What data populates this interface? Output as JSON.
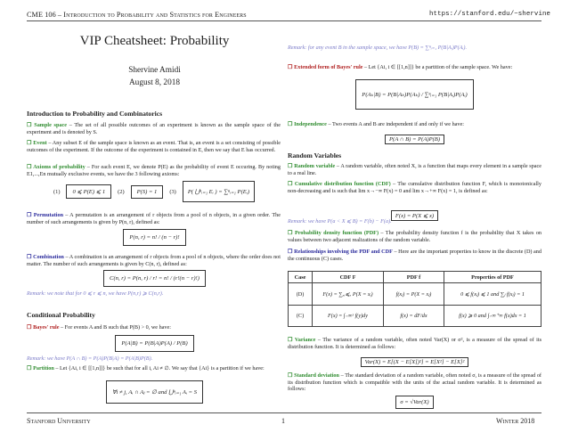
{
  "header": {
    "course": "CME 106 – Introduction to Probability and Statistics for Engineers",
    "url": "https://stanford.edu/~shervine"
  },
  "title": "VIP Cheatsheet: Probability",
  "author": "Shervine Amidi",
  "date": "August 8, 2018",
  "colors": {
    "green": "#2e8b2e",
    "blue": "#2b2b9c",
    "red": "#b02020",
    "remark": "#7a7ac8"
  },
  "left": {
    "sec1": "Introduction to Probability and Combinatorics",
    "sample": {
      "term": "❒ Sample space",
      "text": " – The set of all possible outcomes of an experiment is known as the sample space of the experiment and is denoted by S."
    },
    "event": {
      "term": "❒ Event",
      "text": " – Any subset E of the sample space is known as an event. That is, an event is a set consisting of possible outcomes of the experiment. If the outcome of the experiment is contained in E, then we say that E has occurred."
    },
    "axioms": {
      "term": "❒ Axioms of probability",
      "text": " – For each event E, we denote P(E) as the probability of event E occuring. By noting E1,...,En mutually exclusive events, we have the 3 following axioms:",
      "n1": "(1)",
      "f1": "0 ⩽ P(E) ⩽ 1",
      "n2": "(2)",
      "f2": "P(S) = 1",
      "n3": "(3)",
      "f3": "P( ⋃ⁿᵢ₌₁ Eᵢ ) = ∑ⁿᵢ₌₁ P(Eᵢ)"
    },
    "perm": {
      "term": "❒ Permutation",
      "text": " – A permutation is an arrangement of r objects from a pool of n objects, in a given order. The number of such arrangements is given by P(n, r), defined as:",
      "formula": "P(n, r) = n! / (n − r)!"
    },
    "comb": {
      "term": "❒ Combination",
      "text": " – A combination is an arrangement of r objects from a pool of n objects, where the order does not matter. The number of such arrangements is given by C(n, r), defined as:",
      "formula": "C(n, r) = P(n, r) / r! = n! / (r!(n − r)!)"
    },
    "remark1": "Remark: we note that for 0 ⩽ r ⩽ n, we have P(n,r) ⩾ C(n,r).",
    "sec2": "Conditional Probability",
    "bayes": {
      "term": "❒ Bayes' rule",
      "text": " – For events A and B such that P(B) > 0, we have:",
      "formula": "P(A|B) = P(B|A)P(A) / P(B)"
    },
    "remark2": "Remark: we have P(A ∩ B) = P(A)P(B|A) = P(A|B)P(B).",
    "partition": {
      "term": "❒ Partition",
      "text": " – Let {Ai, i ∈ [[1,n]]} be such that for all i, Ai ≠ ∅. We say that {Ai} is a partition if we have:",
      "formula": "∀i ≠ j, Aᵢ ∩ Aⱼ = ∅   and   ⋃ⁿᵢ₌₁ Aᵢ = S"
    }
  },
  "right": {
    "remark3": "Remark: for any event B in the sample space, we have P(B) = ∑ⁿᵢ₌₁ P(B|Aᵢ)P(Aᵢ).",
    "ext": {
      "term": "❒ Extended form of Bayes' rule",
      "text": " – Let {Ai, i ∈ [[1,n]]} be a partition of the sample space. We have:",
      "formula": "P(Aₖ|B) = P(B|Aₖ)P(Aₖ) / ∑ⁿᵢ₌₁ P(B|Aᵢ)P(Aᵢ)"
    },
    "indep": {
      "term": "❒ Independence",
      "text": " – Two events A and B are independent if and only if we have:",
      "formula": "P(A ∩ B) = P(A)P(B)"
    },
    "sec3": "Random Variables",
    "rv": {
      "term": "❒ Random variable",
      "text": " – A random variable, often noted X, is a function that maps every element in a sample space to a real line."
    },
    "cdf": {
      "term": "❒ Cumulative distribution function (CDF)",
      "text": " – The cumulative distribution function F, which is monotonically non-decreasing and is such that lim x→−∞ F(x) = 0 and lim x→+∞ F(x) = 1, is defined as:",
      "formula": "F(x) = P(X ⩽ x)"
    },
    "remark4": "Remark: we have P(a < X ⩽ B) = F(b) − F(a).",
    "pdf": {
      "term": "❒ Probability density function (PDF)",
      "text": " – The probability density function f is the probability that X takes on values between two adjacent realizations of the random variable."
    },
    "rel": {
      "term": "❒ Relationships involving the PDF and CDF",
      "text": " – Here are the important properties to know in the discrete (D) and the continuous (C) cases."
    },
    "table": {
      "headers": [
        "Case",
        "CDF F",
        "PDF f",
        "Properties of PDF"
      ],
      "rows": [
        [
          "(D)",
          "F(x) = ∑ₓᵢ⩽ₓ P(X = xᵢ)",
          "f(xⱼ) = P(X = xⱼ)",
          "0 ⩽ f(xⱼ) ⩽ 1 and ∑ⱼ f(xⱼ) = 1"
        ],
        [
          "(C)",
          "F(x) = ∫₋∞ˣ f(y)dy",
          "f(x) = dF/dx",
          "f(x) ⩾ 0 and ∫₋∞⁺∞ f(x)dx = 1"
        ]
      ]
    },
    "var": {
      "term": "❒ Variance",
      "text": " – The variance of a random variable, often noted Var(X) or σ², is a measure of the spread of its distribution function. It is determined as follows:",
      "formula": "Var(X) = E[(X − E[X])²] = E[X²] − E[X]²"
    },
    "std": {
      "term": "❒ Standard deviation",
      "text": " – The standard deviation of a random variable, often noted σ, is a measure of the spread of its distribution function which is compatible with the units of the actual random variable. It is determined as follows:",
      "formula": "σ = √Var(X)"
    }
  },
  "footer": {
    "left": "Stanford University",
    "page": "1",
    "right": "Winter 2018"
  }
}
